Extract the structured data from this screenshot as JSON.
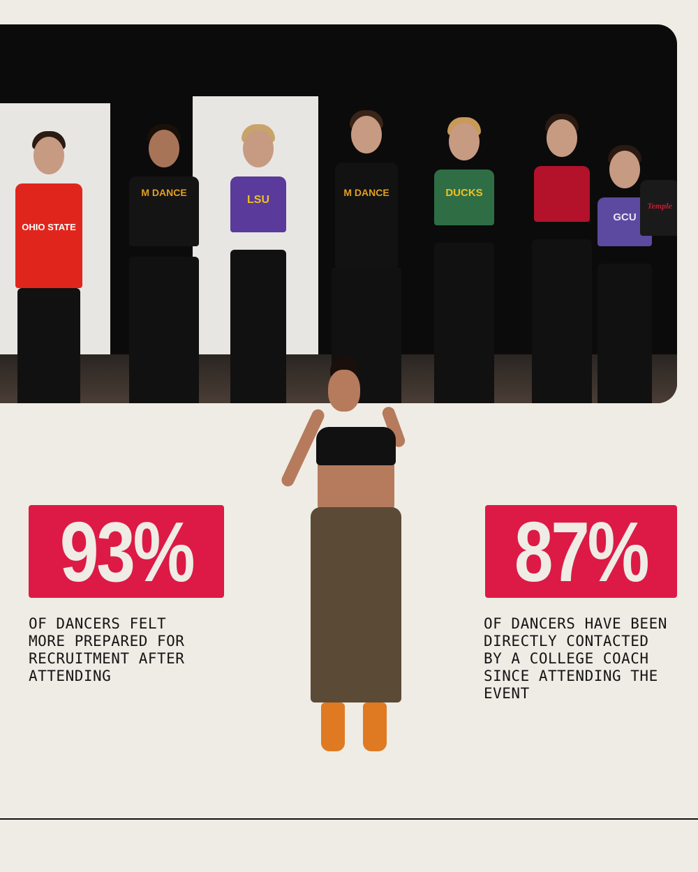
{
  "photo": {
    "jersey_labels": [
      "OHIO STATE",
      "M DANCE",
      "LSU",
      "M DANCE",
      "DUCKS",
      "GCU",
      "Temple"
    ]
  },
  "stats": [
    {
      "value": "93%",
      "text": "OF DANCERS FELT\nMORE PREPARED FOR\nRECRUITMENT AFTER\nATTENDING"
    },
    {
      "value": "87%",
      "text": "OF DANCERS HAVE BEEN\nDIRECTLY CONTACTED\nBY A COLLEGE COACH\nSINCE ATTENDING THE\nEVENT"
    }
  ],
  "colors": {
    "accent": "#dc1a45",
    "background": "#efece5",
    "text": "#141414"
  }
}
